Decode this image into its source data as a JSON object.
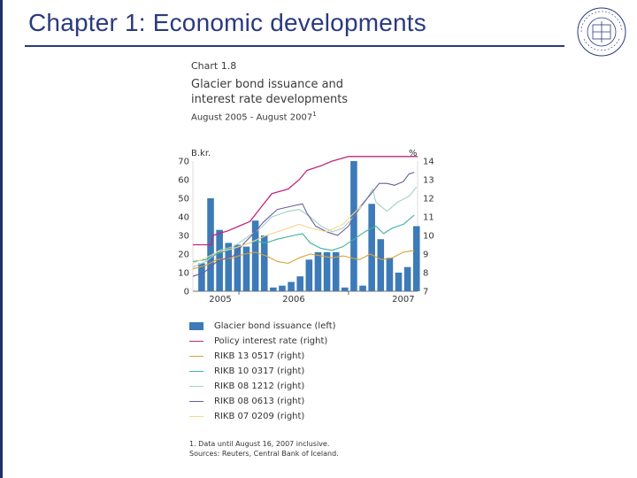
{
  "slide": {
    "title": "Chapter 1: Economic developments",
    "logo": {
      "name": "university-seal",
      "text": "SEÐLABANKI ÍSLANDS"
    }
  },
  "colors": {
    "title": "#2a3a7e",
    "bars": "#3d7ab8",
    "policy": "#c0267c",
    "rikb_13": "#d9a23b",
    "rikb_10": "#3fb29d",
    "rikb_08_12": "#9fd3c9",
    "rikb_08_06": "#6a5c9e",
    "rikb_07": "#f2d88e"
  },
  "chart_data": {
    "type": "bar+line",
    "number": "Chart 1.8",
    "title_lines": [
      "Glacier bond issuance and",
      "interest rate developments"
    ],
    "subtitle": "August 2005 - August 2007",
    "subtitle_note": "1",
    "left_axis": {
      "label": "B.kr.",
      "range": [
        0,
        70
      ],
      "ticks": [
        "0",
        "10",
        "20",
        "30",
        "40",
        "50",
        "60",
        "70"
      ]
    },
    "right_axis": {
      "label": "%",
      "range": [
        7,
        14
      ],
      "ticks": [
        "7",
        "8",
        "9",
        "10",
        "11",
        "12",
        "13",
        "14"
      ]
    },
    "x_range": [
      2005.58,
      2007.63
    ],
    "x_ticks": [
      {
        "label": "2005",
        "x": 2005.83
      },
      {
        "label": "2006",
        "x": 2006.5
      },
      {
        "label": "2007",
        "x": 2007.5
      }
    ],
    "bars": {
      "name": "Glacier bond issuance (left)",
      "months": [
        "2005-08",
        "2005-09",
        "2005-10",
        "2005-11",
        "2005-12",
        "2006-01",
        "2006-02",
        "2006-03",
        "2006-04",
        "2006-05",
        "2006-06",
        "2006-07",
        "2006-08",
        "2006-09",
        "2006-10",
        "2006-11",
        "2006-12",
        "2007-01",
        "2007-02",
        "2007-03",
        "2007-04",
        "2007-05",
        "2007-06",
        "2007-07",
        "2007-08"
      ],
      "values": [
        15,
        50,
        33,
        26,
        25,
        24,
        38,
        30,
        2,
        3,
        5,
        8,
        17,
        21,
        21,
        21,
        2,
        70,
        3,
        47,
        28,
        18,
        10,
        13,
        35
      ]
    },
    "lines": [
      {
        "key": "policy",
        "name": "Policy interest rate (right)",
        "points": [
          [
            2005.58,
            9.5
          ],
          [
            2005.75,
            9.5
          ],
          [
            2005.76,
            10
          ],
          [
            2005.9,
            10.25
          ],
          [
            2006.0,
            10.5
          ],
          [
            2006.1,
            10.75
          ],
          [
            2006.2,
            11.5
          ],
          [
            2006.3,
            12.25
          ],
          [
            2006.45,
            12.5
          ],
          [
            2006.55,
            13.0
          ],
          [
            2006.62,
            13.5
          ],
          [
            2006.75,
            13.75
          ],
          [
            2006.85,
            14.0
          ],
          [
            2007.0,
            14.25
          ],
          [
            2007.63,
            14.25
          ]
        ]
      },
      {
        "key": "rikb_13",
        "name": "RIKB 13 0517 (right)",
        "points": [
          [
            2005.58,
            8.2
          ],
          [
            2005.7,
            8.4
          ],
          [
            2005.8,
            8.7
          ],
          [
            2005.95,
            8.8
          ],
          [
            2006.05,
            9.0
          ],
          [
            2006.15,
            9.1
          ],
          [
            2006.25,
            8.9
          ],
          [
            2006.35,
            8.6
          ],
          [
            2006.45,
            8.5
          ],
          [
            2006.55,
            8.8
          ],
          [
            2006.65,
            9.0
          ],
          [
            2006.75,
            8.9
          ],
          [
            2006.85,
            8.8
          ],
          [
            2006.95,
            8.9
          ],
          [
            2007.1,
            8.7
          ],
          [
            2007.2,
            9.0
          ],
          [
            2007.3,
            8.7
          ],
          [
            2007.4,
            8.8
          ],
          [
            2007.5,
            9.1
          ],
          [
            2007.6,
            9.2
          ]
        ]
      },
      {
        "key": "rikb_10",
        "name": "RIKB 10 0317 (right)",
        "points": [
          [
            2005.58,
            8.6
          ],
          [
            2005.7,
            8.7
          ],
          [
            2005.8,
            9.0
          ],
          [
            2005.95,
            9.3
          ],
          [
            2006.05,
            9.5
          ],
          [
            2006.15,
            9.7
          ],
          [
            2006.25,
            9.6
          ],
          [
            2006.35,
            9.8
          ],
          [
            2006.5,
            10.0
          ],
          [
            2006.58,
            10.1
          ],
          [
            2006.65,
            9.6
          ],
          [
            2006.75,
            9.3
          ],
          [
            2006.85,
            9.2
          ],
          [
            2006.95,
            9.4
          ],
          [
            2007.05,
            9.8
          ],
          [
            2007.15,
            10.2
          ],
          [
            2007.25,
            10.5
          ],
          [
            2007.32,
            10.1
          ],
          [
            2007.4,
            10.4
          ],
          [
            2007.5,
            10.6
          ],
          [
            2007.6,
            11.1
          ]
        ]
      },
      {
        "key": "rikb_08_12",
        "name": "RIKB 08 1212 (right)",
        "points": [
          [
            2005.58,
            8.3
          ],
          [
            2005.7,
            8.6
          ],
          [
            2005.82,
            9.2
          ],
          [
            2005.95,
            9.4
          ],
          [
            2006.05,
            9.8
          ],
          [
            2006.2,
            10.4
          ],
          [
            2006.3,
            11.0
          ],
          [
            2006.45,
            11.3
          ],
          [
            2006.55,
            11.4
          ],
          [
            2006.65,
            11.0
          ],
          [
            2006.75,
            10.5
          ],
          [
            2006.85,
            10.2
          ],
          [
            2006.95,
            10.4
          ],
          [
            2007.05,
            11.0
          ],
          [
            2007.15,
            11.8
          ],
          [
            2007.22,
            12.5
          ],
          [
            2007.25,
            11.8
          ],
          [
            2007.35,
            11.3
          ],
          [
            2007.45,
            11.8
          ],
          [
            2007.55,
            12.1
          ],
          [
            2007.62,
            12.6
          ]
        ]
      },
      {
        "key": "rikb_08_06",
        "name": "RIKB 08 0613 (right)",
        "points": [
          [
            2005.58,
            7.8
          ],
          [
            2005.68,
            8.0
          ],
          [
            2005.8,
            8.6
          ],
          [
            2005.95,
            8.9
          ],
          [
            2006.05,
            9.6
          ],
          [
            2006.15,
            10.2
          ],
          [
            2006.22,
            10.7
          ],
          [
            2006.35,
            11.4
          ],
          [
            2006.5,
            11.6
          ],
          [
            2006.58,
            11.7
          ],
          [
            2006.62,
            11.2
          ],
          [
            2006.7,
            10.5
          ],
          [
            2006.8,
            10.2
          ],
          [
            2006.9,
            10.0
          ],
          [
            2007.0,
            10.5
          ],
          [
            2007.1,
            11.5
          ],
          [
            2007.2,
            12.2
          ],
          [
            2007.28,
            12.8
          ],
          [
            2007.35,
            12.8
          ],
          [
            2007.42,
            12.7
          ],
          [
            2007.5,
            12.9
          ],
          [
            2007.55,
            13.3
          ],
          [
            2007.6,
            13.4
          ]
        ]
      },
      {
        "key": "rikb_07",
        "name": "RIKB 07 0209 (right)",
        "points": [
          [
            2005.58,
            8.5
          ],
          [
            2005.7,
            8.8
          ],
          [
            2005.8,
            9.1
          ],
          [
            2005.95,
            9.3
          ],
          [
            2006.1,
            9.6
          ],
          [
            2006.25,
            10.0
          ],
          [
            2006.4,
            10.3
          ],
          [
            2006.55,
            10.6
          ],
          [
            2006.65,
            10.4
          ],
          [
            2006.8,
            10.2
          ],
          [
            2006.95,
            10.6
          ],
          [
            2007.05,
            11.2
          ],
          [
            2007.12,
            11.6
          ]
        ]
      }
    ],
    "legend": [
      {
        "key": "bars",
        "kind": "bar",
        "label": "Glacier bond issuance (left)"
      },
      {
        "key": "policy",
        "kind": "line",
        "label": "Policy interest rate (right)"
      },
      {
        "key": "rikb_13",
        "kind": "line",
        "label": "RIKB 13 0517 (right)"
      },
      {
        "key": "rikb_10",
        "kind": "line",
        "label": "RIKB 10 0317 (right)"
      },
      {
        "key": "rikb_08_12",
        "kind": "line",
        "label": "RIKB 08 1212 (right)"
      },
      {
        "key": "rikb_08_06",
        "kind": "line",
        "label": "RIKB 08 0613 (right)"
      },
      {
        "key": "rikb_07",
        "kind": "line",
        "label": "RIKB 07 0209 (right)"
      }
    ],
    "footnote": "1. Data until August 16, 2007 inclusive.",
    "source": "Sources: Reuters, Central Bank of Iceland."
  }
}
